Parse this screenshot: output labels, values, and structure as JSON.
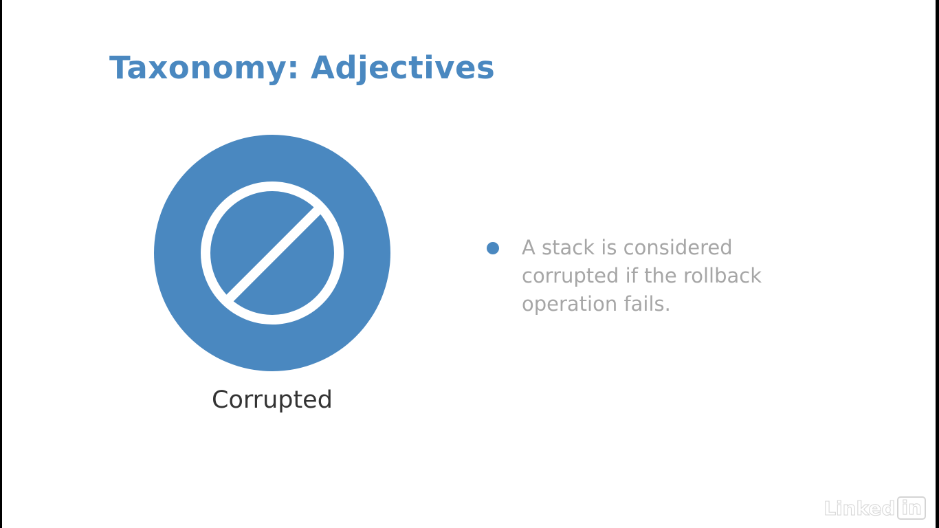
{
  "slide": {
    "title": "Taxonomy: Adjectives",
    "icon": {
      "name": "prohibited-icon",
      "label": "Corrupted",
      "color": "#4a88c0"
    },
    "bullets": [
      "A stack is considered corrupted if the rollback operation fails."
    ]
  },
  "watermark": {
    "brand": "Linked",
    "brand_box": "in"
  }
}
